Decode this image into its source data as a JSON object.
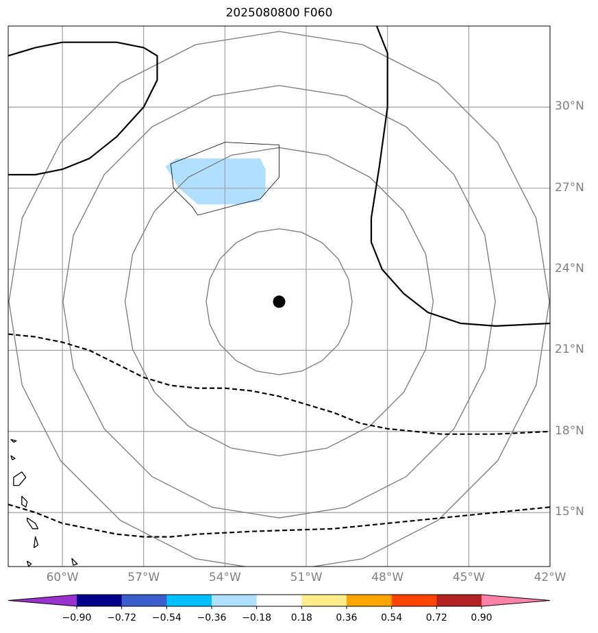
{
  "title": "2025080800 F060",
  "map": {
    "lon_range": [
      -62,
      -42
    ],
    "lat_range": [
      13,
      33
    ],
    "lon_ticks": [
      {
        "value": -60,
        "label": "60°W"
      },
      {
        "value": -57,
        "label": "57°W"
      },
      {
        "value": -54,
        "label": "54°W"
      },
      {
        "value": -51,
        "label": "51°W"
      },
      {
        "value": -48,
        "label": "48°W"
      },
      {
        "value": -45,
        "label": "45°W"
      },
      {
        "value": -42,
        "label": "42°W"
      }
    ],
    "lat_ticks": [
      {
        "value": 30,
        "label": "30°N"
      },
      {
        "value": 27,
        "label": "27°N"
      },
      {
        "value": 24,
        "label": "24°N"
      },
      {
        "value": 21,
        "label": "21°N"
      },
      {
        "value": 18,
        "label": "18°N"
      },
      {
        "value": 15,
        "label": "15°N"
      }
    ],
    "storm_center": {
      "lon": -52.0,
      "lat": 22.8
    },
    "range_rings_deg": [
      2.7,
      5.7,
      8.0,
      10.0
    ],
    "shaded_anomaly": {
      "color": "#b0e0ff",
      "polygon": [
        [
          -56.2,
          27.8
        ],
        [
          -55.8,
          28.1
        ],
        [
          -54.0,
          28.1
        ],
        [
          -52.7,
          28.1
        ],
        [
          -52.5,
          27.7
        ],
        [
          -52.5,
          26.8
        ],
        [
          -52.8,
          26.5
        ],
        [
          -53.5,
          26.4
        ],
        [
          -55.0,
          26.4
        ],
        [
          -55.7,
          27.0
        ],
        [
          -56.0,
          27.5
        ]
      ]
    },
    "thin_contour": [
      [
        -56.0,
        27.9
      ],
      [
        -54.0,
        28.7
      ],
      [
        -52.0,
        28.6
      ],
      [
        -52.0,
        27.4
      ],
      [
        -52.7,
        26.6
      ],
      [
        -53.5,
        26.4
      ],
      [
        -55.0,
        26.0
      ],
      [
        -55.2,
        26.3
      ],
      [
        -55.9,
        27.0
      ]
    ],
    "solid_contours": [
      [
        [
          -62.0,
          31.9
        ],
        [
          -61.0,
          32.2
        ],
        [
          -60.0,
          32.4
        ],
        [
          -58.0,
          32.4
        ],
        [
          -57.0,
          32.2
        ],
        [
          -56.5,
          31.9
        ],
        [
          -56.5,
          31.0
        ],
        [
          -57.0,
          30.0
        ],
        [
          -58.0,
          28.9
        ],
        [
          -59.0,
          28.1
        ],
        [
          -60.0,
          27.7
        ],
        [
          -61.0,
          27.5
        ],
        [
          -62.0,
          27.5
        ]
      ],
      [
        [
          -48.4,
          33.0
        ],
        [
          -48.0,
          32.0
        ],
        [
          -48.0,
          30.0
        ],
        [
          -48.3,
          27.8
        ],
        [
          -48.6,
          25.9
        ],
        [
          -48.6,
          25.0
        ],
        [
          -48.2,
          24.0
        ],
        [
          -47.4,
          23.1
        ],
        [
          -46.5,
          22.4
        ],
        [
          -45.3,
          22.0
        ],
        [
          -44.0,
          21.9
        ],
        [
          -42.0,
          22.0
        ]
      ]
    ],
    "dashed_contours": [
      [
        [
          -62.0,
          21.6
        ],
        [
          -61.0,
          21.5
        ],
        [
          -60.0,
          21.3
        ],
        [
          -59.0,
          21.0
        ],
        [
          -58.0,
          20.5
        ],
        [
          -57.0,
          20.0
        ],
        [
          -56.0,
          19.7
        ],
        [
          -55.0,
          19.6
        ],
        [
          -54.0,
          19.6
        ],
        [
          -53.0,
          19.5
        ],
        [
          -52.0,
          19.3
        ],
        [
          -51.0,
          19.0
        ],
        [
          -50.0,
          18.7
        ],
        [
          -49.0,
          18.3
        ],
        [
          -48.0,
          18.1
        ],
        [
          -46.0,
          17.9
        ],
        [
          -44.0,
          17.9
        ],
        [
          -42.0,
          18.0
        ]
      ],
      [
        [
          -62.0,
          15.3
        ],
        [
          -61.0,
          15.0
        ],
        [
          -60.0,
          14.6
        ],
        [
          -59.0,
          14.4
        ],
        [
          -58.0,
          14.2
        ],
        [
          -57.0,
          14.1
        ],
        [
          -56.0,
          14.1
        ],
        [
          -55.0,
          14.2
        ],
        [
          -53.0,
          14.3
        ],
        [
          -50.0,
          14.4
        ],
        [
          -48.0,
          14.6
        ],
        [
          -46.0,
          14.8
        ],
        [
          -44.0,
          15.0
        ],
        [
          -42.0,
          15.2
        ]
      ]
    ],
    "islands": [
      [
        [
          -61.9,
          17.7
        ],
        [
          -61.8,
          17.6
        ],
        [
          -61.7,
          17.65
        ]
      ],
      [
        [
          -61.9,
          17.1
        ],
        [
          -61.75,
          17.0
        ],
        [
          -61.85,
          16.95
        ]
      ],
      [
        [
          -61.8,
          16.3
        ],
        [
          -61.5,
          16.5
        ],
        [
          -61.35,
          16.3
        ],
        [
          -61.6,
          16.0
        ],
        [
          -61.8,
          16.0
        ]
      ],
      [
        [
          -61.5,
          15.6
        ],
        [
          -61.3,
          15.4
        ],
        [
          -61.35,
          15.2
        ],
        [
          -61.5,
          15.3
        ]
      ],
      [
        [
          -61.3,
          14.8
        ],
        [
          -61.0,
          14.6
        ],
        [
          -60.9,
          14.4
        ],
        [
          -61.1,
          14.4
        ],
        [
          -61.3,
          14.7
        ]
      ],
      [
        [
          -61.0,
          14.1
        ],
        [
          -60.9,
          13.8
        ],
        [
          -61.05,
          13.7
        ]
      ],
      [
        [
          -61.3,
          13.2
        ],
        [
          -61.15,
          13.1
        ],
        [
          -61.25,
          13.0
        ]
      ],
      [
        [
          -59.65,
          13.3
        ],
        [
          -59.45,
          13.1
        ],
        [
          -59.6,
          13.05
        ]
      ]
    ]
  },
  "colorbar": {
    "colors": [
      "#9932cc",
      "#00008b",
      "#3a5fcd",
      "#00bfff",
      "#b0e0ff",
      "#ffffff",
      "#ffec8b",
      "#ffa500",
      "#ff4500",
      "#b22222",
      "#ff82ab"
    ],
    "labels": [
      "−0.90",
      "−0.72",
      "−0.54",
      "−0.36",
      "−0.18",
      "0.18",
      "0.36",
      "0.54",
      "0.72",
      "0.90"
    ]
  }
}
